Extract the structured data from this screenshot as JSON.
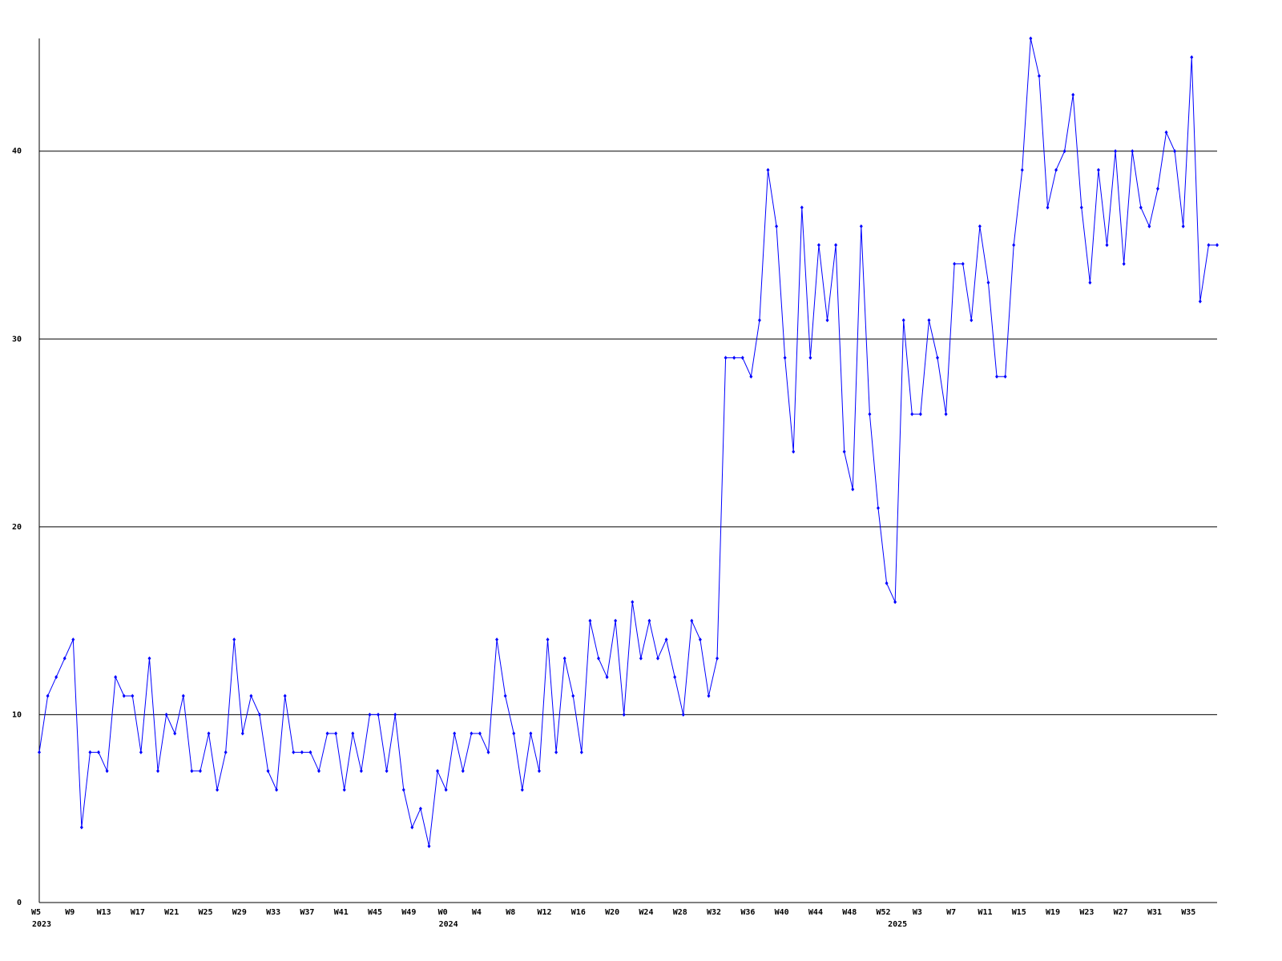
{
  "chart_data": {
    "type": "line",
    "categories": [
      "W5",
      null,
      null,
      null,
      "W9",
      null,
      null,
      null,
      "W13",
      null,
      null,
      null,
      "W17",
      null,
      null,
      null,
      "W21",
      null,
      null,
      null,
      "W25",
      null,
      null,
      null,
      "W29",
      null,
      null,
      null,
      "W33",
      null,
      null,
      null,
      "W37",
      null,
      null,
      null,
      "W41",
      null,
      null,
      null,
      "W45",
      null,
      null,
      null,
      "W49",
      null,
      null,
      null,
      "W0",
      null,
      null,
      null,
      "W4",
      null,
      null,
      null,
      "W8",
      null,
      null,
      null,
      "W12",
      null,
      null,
      null,
      "W16",
      null,
      null,
      null,
      "W20",
      null,
      null,
      null,
      "W24",
      null,
      null,
      null,
      "W28",
      null,
      null,
      null,
      "W32",
      null,
      null,
      null,
      "W36",
      null,
      null,
      null,
      "W40",
      null,
      null,
      null,
      "W44",
      null,
      null,
      null,
      "W48",
      null,
      null,
      null,
      "W52",
      null,
      null,
      null,
      "W3",
      null,
      null,
      null,
      "W7",
      null,
      null,
      null,
      "W11",
      null,
      null,
      null,
      "W15",
      null,
      null,
      null,
      "W19",
      null,
      null,
      null,
      "W23",
      null,
      null,
      null,
      "W27",
      null,
      null,
      null,
      "W31",
      null,
      null,
      null,
      "W35",
      null,
      null,
      null
    ],
    "year_labels": [
      "2023",
      null,
      null,
      null,
      null,
      null,
      null,
      null,
      null,
      null,
      null,
      null,
      null,
      null,
      null,
      null,
      null,
      null,
      null,
      null,
      null,
      null,
      null,
      null,
      null,
      null,
      null,
      null,
      null,
      null,
      null,
      null,
      null,
      null,
      null,
      null,
      null,
      null,
      null,
      null,
      null,
      null,
      null,
      null,
      null,
      null,
      null,
      null,
      "2024",
      null,
      null,
      null,
      null,
      null,
      null,
      null,
      null,
      null,
      null,
      null,
      null,
      null,
      null,
      null,
      null,
      null,
      null,
      null,
      null,
      null,
      null,
      null,
      null,
      null,
      null,
      null,
      null,
      null,
      null,
      null,
      null,
      null,
      null,
      null,
      null,
      null,
      null,
      null,
      null,
      null,
      null,
      null,
      null,
      null,
      null,
      null,
      null,
      null,
      null,
      null,
      null,
      "2025",
      null,
      null,
      null,
      null,
      null,
      null,
      null,
      null,
      null,
      null,
      null,
      null,
      null,
      null,
      null,
      null,
      null,
      null,
      null,
      null,
      null,
      null,
      null,
      null,
      null,
      null,
      null,
      null,
      null,
      null,
      null,
      null,
      null,
      null,
      null,
      null,
      null,
      null
    ],
    "values": [
      8,
      11,
      12,
      13,
      14,
      4,
      8,
      8,
      7,
      12,
      11,
      11,
      8,
      13,
      7,
      10,
      9,
      11,
      7,
      7,
      9,
      6,
      8,
      14,
      9,
      11,
      10,
      7,
      6,
      11,
      8,
      8,
      8,
      7,
      9,
      9,
      6,
      9,
      7,
      10,
      10,
      7,
      10,
      6,
      4,
      5,
      3,
      7,
      6,
      9,
      7,
      9,
      9,
      8,
      14,
      11,
      9,
      6,
      9,
      7,
      14,
      8,
      13,
      11,
      8,
      15,
      13,
      12,
      15,
      10,
      16,
      13,
      15,
      13,
      14,
      12,
      10,
      15,
      14,
      11,
      13,
      29,
      29,
      29,
      28,
      31,
      39,
      36,
      29,
      24,
      37,
      29,
      35,
      31,
      35,
      24,
      22,
      36,
      26,
      21,
      17,
      16,
      31,
      26,
      26,
      31,
      29,
      26,
      34,
      34,
      31,
      36,
      33,
      28,
      28,
      35,
      39,
      46,
      44,
      37,
      39,
      40,
      43,
      37,
      33,
      39,
      35,
      40,
      34,
      40,
      37,
      36,
      38,
      41,
      40,
      36,
      45,
      32,
      35,
      35
    ],
    "color": "#0000ff",
    "ylim": [
      0,
      46
    ],
    "yticks": [
      0,
      10,
      20,
      30,
      40
    ],
    "grid": true
  }
}
